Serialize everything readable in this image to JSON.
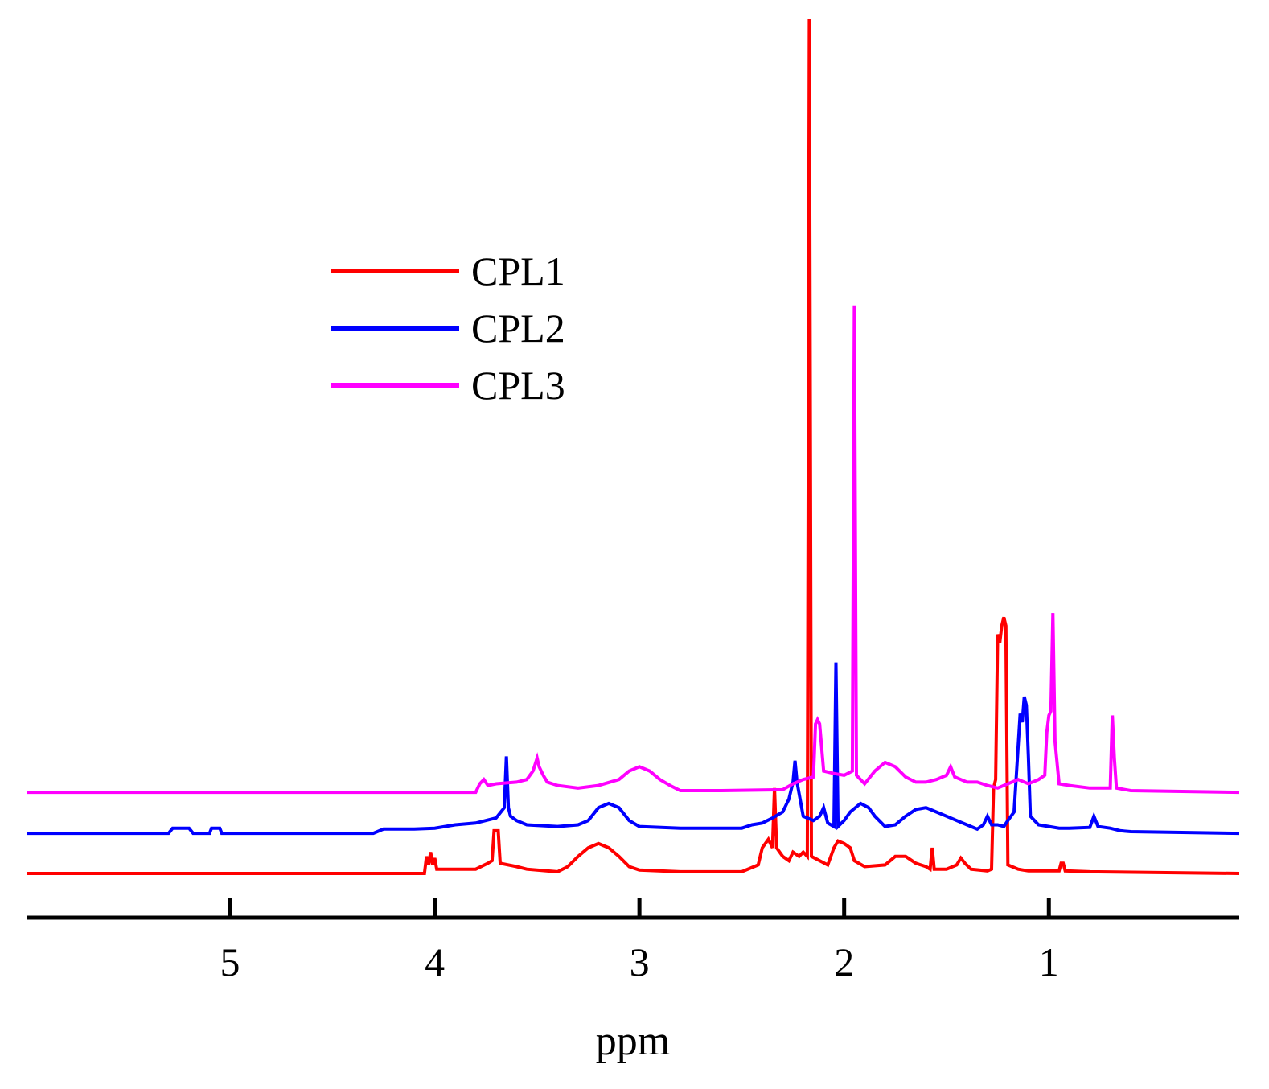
{
  "chart_data": {
    "type": "line",
    "title": "",
    "xlabel": "ppm",
    "ylabel": "",
    "x_reversed": true,
    "xlim": [
      5.99,
      0.07
    ],
    "ylim": [
      0,
      1
    ],
    "xticks": [
      5,
      4,
      3,
      2,
      1
    ],
    "grid": false,
    "legend_position": "top-left",
    "series": [
      {
        "name": "CPL1",
        "color": "#ff0000",
        "offset": 0,
        "points": [
          [
            5.99,
            0
          ],
          [
            4.05,
            0
          ],
          [
            4.04,
            0.02
          ],
          [
            4.03,
            0.01
          ],
          [
            4.02,
            0.025
          ],
          [
            4.01,
            0.01
          ],
          [
            4.0,
            0.018
          ],
          [
            3.99,
            0.005
          ],
          [
            3.9,
            0.005
          ],
          [
            3.8,
            0.005
          ],
          [
            3.74,
            0.012
          ],
          [
            3.72,
            0.015
          ],
          [
            3.71,
            0.05
          ],
          [
            3.69,
            0.05
          ],
          [
            3.68,
            0.012
          ],
          [
            3.6,
            0.008
          ],
          [
            3.55,
            0.005
          ],
          [
            3.4,
            0.002
          ],
          [
            3.35,
            0.008
          ],
          [
            3.3,
            0.02
          ],
          [
            3.25,
            0.03
          ],
          [
            3.2,
            0.035
          ],
          [
            3.15,
            0.03
          ],
          [
            3.1,
            0.02
          ],
          [
            3.05,
            0.008
          ],
          [
            3.0,
            0.004
          ],
          [
            2.8,
            0.002
          ],
          [
            2.5,
            0.002
          ],
          [
            2.42,
            0.01
          ],
          [
            2.4,
            0.03
          ],
          [
            2.37,
            0.04
          ],
          [
            2.35,
            0.03
          ],
          [
            2.34,
            0.1
          ],
          [
            2.33,
            0.03
          ],
          [
            2.3,
            0.02
          ],
          [
            2.27,
            0.015
          ],
          [
            2.25,
            0.025
          ],
          [
            2.22,
            0.02
          ],
          [
            2.2,
            0.025
          ],
          [
            2.18,
            0.02
          ],
          [
            2.17,
            1.0
          ],
          [
            2.16,
            0.02
          ],
          [
            2.12,
            0.015
          ],
          [
            2.08,
            0.01
          ],
          [
            2.05,
            0.03
          ],
          [
            2.03,
            0.038
          ],
          [
            2.0,
            0.035
          ],
          [
            1.97,
            0.03
          ],
          [
            1.95,
            0.015
          ],
          [
            1.9,
            0.008
          ],
          [
            1.8,
            0.01
          ],
          [
            1.75,
            0.02
          ],
          [
            1.7,
            0.02
          ],
          [
            1.65,
            0.012
          ],
          [
            1.6,
            0.008
          ],
          [
            1.58,
            0.005
          ],
          [
            1.57,
            0.03
          ],
          [
            1.56,
            0.005
          ],
          [
            1.5,
            0.005
          ],
          [
            1.45,
            0.01
          ],
          [
            1.43,
            0.018
          ],
          [
            1.41,
            0.012
          ],
          [
            1.38,
            0.005
          ],
          [
            1.3,
            0.003
          ],
          [
            1.28,
            0.005
          ],
          [
            1.27,
            0.1
          ],
          [
            1.26,
            0.11
          ],
          [
            1.25,
            0.28
          ],
          [
            1.24,
            0.27
          ],
          [
            1.23,
            0.29
          ],
          [
            1.22,
            0.3
          ],
          [
            1.21,
            0.29
          ],
          [
            1.2,
            0.01
          ],
          [
            1.15,
            0.005
          ],
          [
            1.1,
            0.003
          ],
          [
            1.0,
            0.003
          ],
          [
            0.95,
            0.003
          ],
          [
            0.94,
            0.012
          ],
          [
            0.93,
            0.012
          ],
          [
            0.92,
            0.003
          ],
          [
            0.8,
            0.002
          ],
          [
            0.07,
            0
          ]
        ]
      },
      {
        "name": "CPL2",
        "color": "#0000ff",
        "offset": 0.047,
        "points": [
          [
            5.99,
            0
          ],
          [
            5.3,
            0
          ],
          [
            5.28,
            0.006
          ],
          [
            5.2,
            0.006
          ],
          [
            5.18,
            0
          ],
          [
            5.1,
            0
          ],
          [
            5.09,
            0.006
          ],
          [
            5.05,
            0.006
          ],
          [
            5.04,
            0
          ],
          [
            4.3,
            0
          ],
          [
            4.25,
            0.005
          ],
          [
            4.2,
            0.005
          ],
          [
            4.1,
            0.005
          ],
          [
            4.0,
            0.006
          ],
          [
            3.95,
            0.008
          ],
          [
            3.9,
            0.01
          ],
          [
            3.8,
            0.012
          ],
          [
            3.7,
            0.018
          ],
          [
            3.66,
            0.03
          ],
          [
            3.65,
            0.09
          ],
          [
            3.64,
            0.03
          ],
          [
            3.63,
            0.02
          ],
          [
            3.6,
            0.015
          ],
          [
            3.55,
            0.01
          ],
          [
            3.4,
            0.008
          ],
          [
            3.3,
            0.01
          ],
          [
            3.25,
            0.015
          ],
          [
            3.2,
            0.03
          ],
          [
            3.15,
            0.035
          ],
          [
            3.1,
            0.03
          ],
          [
            3.05,
            0.015
          ],
          [
            3.0,
            0.008
          ],
          [
            2.8,
            0.006
          ],
          [
            2.6,
            0.006
          ],
          [
            2.5,
            0.006
          ],
          [
            2.45,
            0.01
          ],
          [
            2.4,
            0.012
          ],
          [
            2.35,
            0.018
          ],
          [
            2.3,
            0.025
          ],
          [
            2.27,
            0.04
          ],
          [
            2.25,
            0.06
          ],
          [
            2.24,
            0.085
          ],
          [
            2.23,
            0.06
          ],
          [
            2.2,
            0.02
          ],
          [
            2.15,
            0.015
          ],
          [
            2.12,
            0.02
          ],
          [
            2.1,
            0.03
          ],
          [
            2.08,
            0.012
          ],
          [
            2.05,
            0.008
          ],
          [
            2.04,
            0.2
          ],
          [
            2.03,
            0.008
          ],
          [
            2.0,
            0.015
          ],
          [
            1.97,
            0.025
          ],
          [
            1.92,
            0.035
          ],
          [
            1.88,
            0.03
          ],
          [
            1.85,
            0.02
          ],
          [
            1.8,
            0.008
          ],
          [
            1.75,
            0.01
          ],
          [
            1.7,
            0.02
          ],
          [
            1.65,
            0.028
          ],
          [
            1.6,
            0.03
          ],
          [
            1.55,
            0.025
          ],
          [
            1.5,
            0.02
          ],
          [
            1.45,
            0.015
          ],
          [
            1.4,
            0.01
          ],
          [
            1.35,
            0.005
          ],
          [
            1.32,
            0.01
          ],
          [
            1.3,
            0.02
          ],
          [
            1.28,
            0.01
          ],
          [
            1.25,
            0.01
          ],
          [
            1.22,
            0.008
          ],
          [
            1.2,
            0.015
          ],
          [
            1.17,
            0.025
          ],
          [
            1.14,
            0.14
          ],
          [
            1.13,
            0.13
          ],
          [
            1.12,
            0.16
          ],
          [
            1.11,
            0.15
          ],
          [
            1.1,
            0.09
          ],
          [
            1.09,
            0.02
          ],
          [
            1.05,
            0.01
          ],
          [
            1.0,
            0.008
          ],
          [
            0.95,
            0.006
          ],
          [
            0.9,
            0.006
          ],
          [
            0.8,
            0.007
          ],
          [
            0.78,
            0.02
          ],
          [
            0.76,
            0.008
          ],
          [
            0.7,
            0.006
          ],
          [
            0.65,
            0.003
          ],
          [
            0.6,
            0.002
          ],
          [
            0.07,
            0
          ]
        ]
      },
      {
        "name": "CPL3",
        "color": "#ff00ff",
        "offset": 0.095,
        "points": [
          [
            5.99,
            0
          ],
          [
            3.8,
            0
          ],
          [
            3.78,
            0.01
          ],
          [
            3.76,
            0.015
          ],
          [
            3.74,
            0.008
          ],
          [
            3.7,
            0.01
          ],
          [
            3.6,
            0.012
          ],
          [
            3.55,
            0.015
          ],
          [
            3.52,
            0.025
          ],
          [
            3.5,
            0.04
          ],
          [
            3.49,
            0.03
          ],
          [
            3.47,
            0.02
          ],
          [
            3.45,
            0.012
          ],
          [
            3.4,
            0.008
          ],
          [
            3.3,
            0.005
          ],
          [
            3.2,
            0.008
          ],
          [
            3.1,
            0.015
          ],
          [
            3.05,
            0.025
          ],
          [
            3.0,
            0.03
          ],
          [
            2.95,
            0.025
          ],
          [
            2.9,
            0.015
          ],
          [
            2.85,
            0.008
          ],
          [
            2.8,
            0.002
          ],
          [
            2.6,
            0.002
          ],
          [
            2.3,
            0.003
          ],
          [
            2.25,
            0.01
          ],
          [
            2.2,
            0.015
          ],
          [
            2.15,
            0.018
          ],
          [
            2.14,
            0.08
          ],
          [
            2.13,
            0.085
          ],
          [
            2.12,
            0.08
          ],
          [
            2.1,
            0.025
          ],
          [
            2.05,
            0.022
          ],
          [
            2.0,
            0.02
          ],
          [
            1.96,
            0.025
          ],
          [
            1.95,
            0.57
          ],
          [
            1.94,
            0.02
          ],
          [
            1.9,
            0.01
          ],
          [
            1.85,
            0.025
          ],
          [
            1.8,
            0.035
          ],
          [
            1.75,
            0.03
          ],
          [
            1.7,
            0.018
          ],
          [
            1.65,
            0.012
          ],
          [
            1.6,
            0.012
          ],
          [
            1.55,
            0.015
          ],
          [
            1.5,
            0.02
          ],
          [
            1.48,
            0.03
          ],
          [
            1.46,
            0.018
          ],
          [
            1.43,
            0.015
          ],
          [
            1.4,
            0.012
          ],
          [
            1.35,
            0.012
          ],
          [
            1.3,
            0.008
          ],
          [
            1.25,
            0.005
          ],
          [
            1.2,
            0.01
          ],
          [
            1.15,
            0.015
          ],
          [
            1.1,
            0.01
          ],
          [
            1.05,
            0.015
          ],
          [
            1.02,
            0.02
          ],
          [
            1.01,
            0.07
          ],
          [
            1.0,
            0.09
          ],
          [
            0.99,
            0.095
          ],
          [
            0.98,
            0.21
          ],
          [
            0.97,
            0.06
          ],
          [
            0.95,
            0.01
          ],
          [
            0.9,
            0.008
          ],
          [
            0.8,
            0.005
          ],
          [
            0.7,
            0.005
          ],
          [
            0.69,
            0.09
          ],
          [
            0.68,
            0.04
          ],
          [
            0.67,
            0.005
          ],
          [
            0.6,
            0.002
          ],
          [
            0.07,
            0
          ]
        ]
      }
    ]
  }
}
